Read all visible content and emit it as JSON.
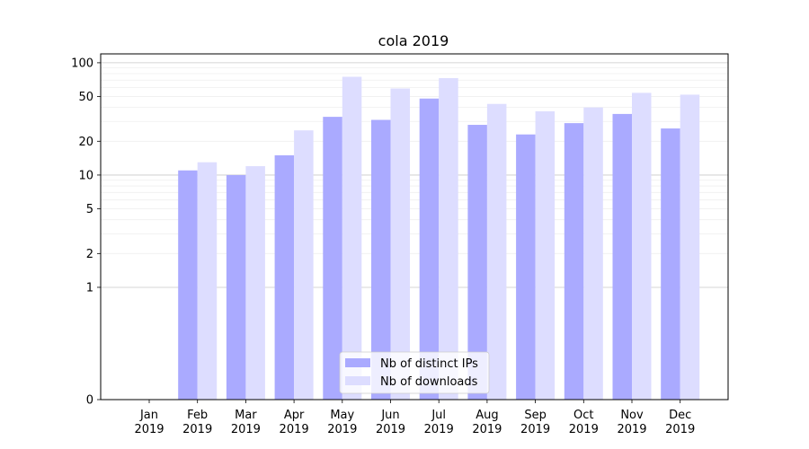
{
  "chart_data": {
    "type": "bar",
    "title": "cola 2019",
    "xlabel": "",
    "ylabel": "",
    "yscale": "symlog",
    "ylim": [
      0,
      120
    ],
    "yticks": [
      0,
      1,
      2,
      5,
      10,
      20,
      50,
      100
    ],
    "ytick_labels": [
      "0",
      "1",
      "2",
      "5",
      "10",
      "20",
      "50",
      "100"
    ],
    "categories": [
      [
        "Jan",
        "2019"
      ],
      [
        "Feb",
        "2019"
      ],
      [
        "Mar",
        "2019"
      ],
      [
        "Apr",
        "2019"
      ],
      [
        "May",
        "2019"
      ],
      [
        "Jun",
        "2019"
      ],
      [
        "Jul",
        "2019"
      ],
      [
        "Aug",
        "2019"
      ],
      [
        "Sep",
        "2019"
      ],
      [
        "Oct",
        "2019"
      ],
      [
        "Nov",
        "2019"
      ],
      [
        "Dec",
        "2019"
      ]
    ],
    "series": [
      {
        "name": "Nb of distinct IPs",
        "color": "#aaaaff",
        "values": [
          0,
          11,
          10,
          15,
          33,
          31,
          48,
          28,
          23,
          29,
          35,
          26
        ]
      },
      {
        "name": "Nb of downloads",
        "color": "#ddddff",
        "values": [
          0,
          13,
          12,
          25,
          75,
          59,
          73,
          43,
          37,
          40,
          54,
          52
        ]
      }
    ],
    "legend_position": "bottom-center",
    "grid": true
  }
}
